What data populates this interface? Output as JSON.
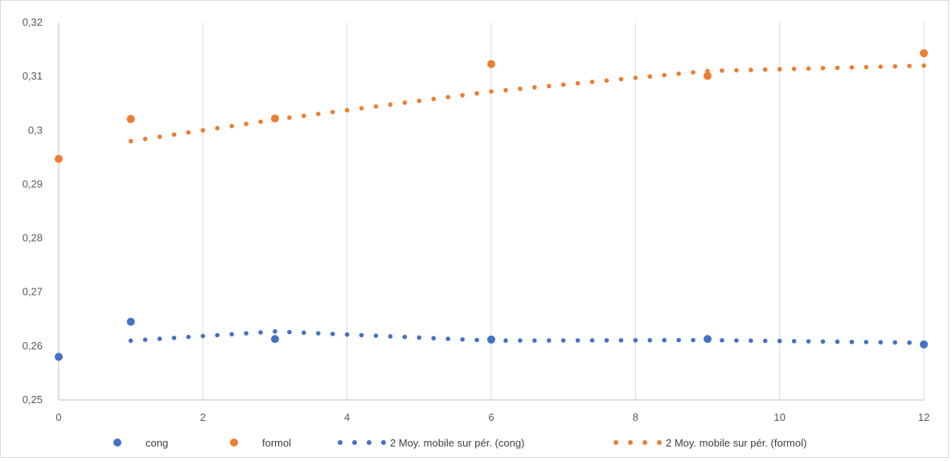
{
  "chart_data": {
    "type": "scatter",
    "title": "",
    "xlabel": "",
    "ylabel": "",
    "xlim": [
      0,
      12
    ],
    "ylim": [
      0.25,
      0.32
    ],
    "x_ticks": [
      0,
      2,
      4,
      6,
      8,
      10,
      12
    ],
    "x_tick_labels": [
      "0",
      "2",
      "4",
      "6",
      "8",
      "10",
      "12"
    ],
    "y_ticks": [
      0.25,
      0.26,
      0.27,
      0.28,
      0.29,
      0.3,
      0.31,
      0.32
    ],
    "y_tick_labels": [
      "0,25",
      "0,26",
      "0,27",
      "0,28",
      "0,29",
      "0,3",
      "0,31",
      "0,32"
    ],
    "grid": "vertical",
    "legend_position": "bottom",
    "series": [
      {
        "name": "cong",
        "kind": "points",
        "color": "#4472c4",
        "x": [
          0,
          1,
          3,
          6,
          9,
          12
        ],
        "y": [
          0.258,
          0.2645,
          0.2613,
          0.2612,
          0.2613,
          0.2603
        ]
      },
      {
        "name": "formol",
        "kind": "points",
        "color": "#ed7d31",
        "x": [
          0,
          1,
          3,
          6,
          9,
          12
        ],
        "y": [
          0.2947,
          0.3021,
          0.3022,
          0.3123,
          0.3101,
          0.3143
        ]
      },
      {
        "name": "2 Moy. mobile sur pér. (cong)",
        "kind": "moving-average",
        "color": "#4472c4",
        "x": [
          1,
          3,
          6,
          9,
          12
        ],
        "y": [
          0.261,
          0.2627,
          0.261,
          0.2611,
          0.2606
        ]
      },
      {
        "name": "2 Moy. mobile sur pér. (formol)",
        "kind": "moving-average",
        "color": "#ed7d31",
        "x": [
          1,
          3,
          6,
          9,
          12
        ],
        "y": [
          0.298,
          0.302,
          0.3072,
          0.311,
          0.312
        ]
      }
    ]
  }
}
